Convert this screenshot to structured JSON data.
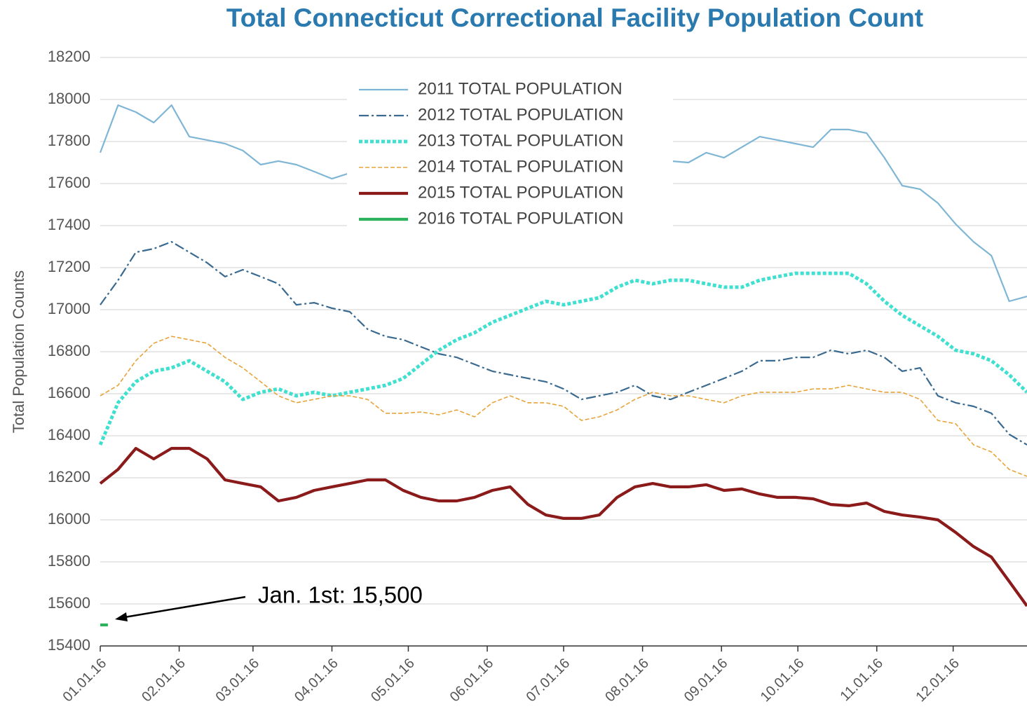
{
  "chart_data": {
    "type": "line",
    "title": "Total Connecticut Correctional Facility Population Count",
    "y_label": "Total Population Counts",
    "annotation": "Jan. 1st:  15,500",
    "xlim": [
      0,
      364
    ],
    "ylim": [
      15400,
      18200
    ],
    "yticks": [
      15400,
      15600,
      15800,
      16000,
      16200,
      16400,
      16600,
      16800,
      17000,
      17200,
      17400,
      17600,
      17800,
      18000,
      18200
    ],
    "xticks": [
      {
        "value": 0,
        "label": "01.01.16"
      },
      {
        "value": 31,
        "label": "02.01.16"
      },
      {
        "value": 60,
        "label": "03.01.16"
      },
      {
        "value": 91,
        "label": "04.01.16"
      },
      {
        "value": 121,
        "label": "05.01.16"
      },
      {
        "value": 152,
        "label": "06.01.16"
      },
      {
        "value": 182,
        "label": "07.01.16"
      },
      {
        "value": 213,
        "label": "08.01.16"
      },
      {
        "value": 244,
        "label": "09.01.16"
      },
      {
        "value": 274,
        "label": "10.01.16"
      },
      {
        "value": 305,
        "label": "11.01.16"
      },
      {
        "value": 335,
        "label": "12.01.16"
      }
    ],
    "grid": true,
    "x": [
      0,
      7,
      14,
      21,
      28,
      35,
      42,
      49,
      56,
      63,
      70,
      77,
      84,
      91,
      98,
      105,
      112,
      119,
      126,
      133,
      140,
      147,
      154,
      161,
      168,
      175,
      182,
      189,
      196,
      203,
      210,
      217,
      224,
      231,
      238,
      245,
      252,
      259,
      266,
      273,
      280,
      287,
      294,
      301,
      308,
      315,
      322,
      329,
      336,
      343,
      350,
      357,
      364
    ],
    "series": [
      {
        "name": "2011 TOTAL POPULATION",
        "color": "#7fb6d5",
        "style": "solid",
        "values": [
          17747,
          17973,
          17940,
          17890,
          17973,
          17823,
          17807,
          17790,
          17757,
          17690,
          17707,
          17690,
          17657,
          17623,
          17650,
          17660,
          17680,
          17700,
          17700,
          17720,
          17700,
          17700,
          17710,
          17720,
          17720,
          17700,
          17700,
          17710,
          17700,
          17710,
          17700,
          17700,
          17707,
          17700,
          17747,
          17723,
          17773,
          17823,
          17807,
          17790,
          17773,
          17857,
          17857,
          17840,
          17723,
          17590,
          17573,
          17507,
          17407,
          17323,
          17257,
          17040,
          17063
        ]
      },
      {
        "name": "2012 TOTAL POPULATION",
        "color": "#3a6a8f",
        "style": "dashdot",
        "values": [
          17023,
          17140,
          17273,
          17290,
          17323,
          17273,
          17223,
          17157,
          17190,
          17157,
          17123,
          17023,
          17033,
          17007,
          16990,
          16907,
          16873,
          16857,
          16823,
          16790,
          16773,
          16740,
          16707,
          16690,
          16673,
          16657,
          16623,
          16573,
          16590,
          16607,
          16640,
          16590,
          16573,
          16607,
          16640,
          16673,
          16707,
          16757,
          16757,
          16773,
          16773,
          16807,
          16790,
          16807,
          16773,
          16707,
          16723,
          16590,
          16557,
          16540,
          16507,
          16407,
          16357
        ]
      },
      {
        "name": "2013 TOTAL POPULATION",
        "color": "#40e0d0",
        "style": "dotted",
        "values": [
          16357,
          16557,
          16657,
          16707,
          16723,
          16757,
          16707,
          16657,
          16573,
          16607,
          16623,
          16590,
          16607,
          16590,
          16607,
          16623,
          16640,
          16673,
          16740,
          16807,
          16857,
          16890,
          16940,
          16973,
          17007,
          17040,
          17023,
          17040,
          17057,
          17107,
          17140,
          17123,
          17140,
          17140,
          17123,
          17107,
          17107,
          17140,
          17157,
          17173,
          17173,
          17173,
          17173,
          17123,
          17040,
          16973,
          16923,
          16873,
          16807,
          16790,
          16757,
          16690,
          16607
        ]
      },
      {
        "name": "2014 TOTAL POPULATION",
        "color": "#e8a33a",
        "style": "dashed",
        "values": [
          16590,
          16640,
          16757,
          16840,
          16873,
          16857,
          16840,
          16773,
          16723,
          16657,
          16590,
          16557,
          16573,
          16590,
          16590,
          16573,
          16507,
          16507,
          16513,
          16500,
          16523,
          16490,
          16557,
          16590,
          16557,
          16557,
          16540,
          16473,
          16490,
          16523,
          16573,
          16607,
          16590,
          16590,
          16573,
          16557,
          16590,
          16607,
          16607,
          16607,
          16623,
          16623,
          16640,
          16623,
          16607,
          16607,
          16573,
          16473,
          16457,
          16357,
          16323,
          16240,
          16207
        ]
      },
      {
        "name": "2015 TOTAL POPULATION",
        "color": "#8b1a1a",
        "style": "thick",
        "values": [
          16173,
          16240,
          16340,
          16290,
          16340,
          16340,
          16290,
          16190,
          16173,
          16157,
          16090,
          16107,
          16140,
          16157,
          16173,
          16190,
          16190,
          16140,
          16107,
          16090,
          16090,
          16107,
          16140,
          16157,
          16073,
          16023,
          16007,
          16007,
          16023,
          16107,
          16157,
          16173,
          16157,
          16157,
          16167,
          16140,
          16147,
          16123,
          16107,
          16107,
          16100,
          16073,
          16067,
          16080,
          16040,
          16023,
          16013,
          16000,
          15940,
          15873,
          15823,
          15707,
          15590
        ]
      },
      {
        "name": "2016 TOTAL POPULATION",
        "color": "#2db35d",
        "style": "thick",
        "x": [
          0,
          3
        ],
        "values": [
          15500,
          15500
        ]
      }
    ]
  }
}
